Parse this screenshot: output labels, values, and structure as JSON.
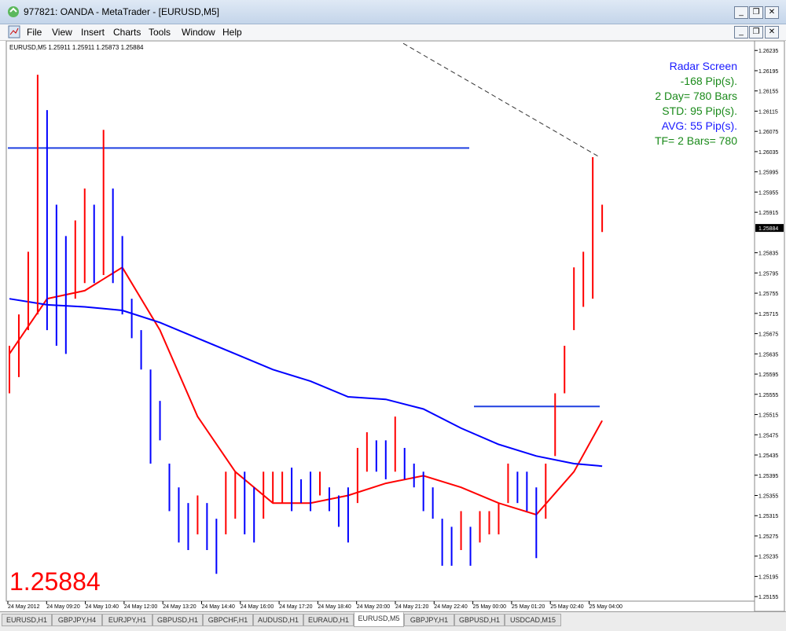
{
  "window_title": "977821: OANDA - MetaTrader - [EURUSD,M5]",
  "menu": [
    "File",
    "View",
    "Insert",
    "Charts",
    "Tools",
    "Window",
    "Help"
  ],
  "chart_info": "EURUSD,M5  1.25911 1.25911 1.25873 1.25884",
  "radar": [
    "Radar Screen",
    "-168 Pip(s).",
    "2 Day= 780 Bars",
    "STD: 95 Pip(s).",
    "AVG: 55 Pip(s).",
    "TF= 2 Bars= 780"
  ],
  "tabs": [
    "EURUSD,H1",
    "GBPJPY,H4",
    "EURJPY,H1",
    "GBPUSD,H1",
    "GBPCHF,H1",
    "AUDUSD,H1",
    "EURAUD,H1",
    "EURUSD,M5",
    "GBPJPY,H1",
    "GBPUSD,H1",
    "USDCAD,M15"
  ],
  "active_tab": 7,
  "chart_data": {
    "type": "ohlc",
    "ylim": [
      1.25146,
      1.26254
    ],
    "yticks": [
      1.26235,
      1.26195,
      1.26155,
      1.26115,
      1.26075,
      1.26035,
      1.25995,
      1.25955,
      1.25915,
      1.25835,
      1.25795,
      1.25755,
      1.25715,
      1.25675,
      1.25635,
      1.25595,
      1.25555,
      1.25515,
      1.25475,
      1.25435,
      1.25395,
      1.25355,
      1.25315,
      1.25275,
      1.25235,
      1.25195,
      1.25155
    ],
    "current_price": 1.25884,
    "categories": [
      "24 May 2012",
      "24 May 09:20",
      "24 May 10:40",
      "24 May 12:00",
      "24 May 13:20",
      "24 May 14:40",
      "24 May 16:00",
      "24 May 17:20",
      "24 May 18:40",
      "24 May 20:00",
      "24 May 21:20",
      "24 May 22:40",
      "25 May 00:00",
      "25 May 01:20",
      "25 May 02:40",
      "25 May 04:00"
    ],
    "highs": [
      1.25651,
      1.25713,
      1.25837,
      1.26187,
      1.26117,
      1.2593,
      1.25868,
      1.25899,
      1.25962,
      1.2593,
      1.26078,
      1.25962,
      1.25868,
      1.25744,
      1.25682,
      1.25604,
      1.25542,
      1.25418,
      1.25371,
      1.2534,
      1.25355,
      1.2534,
      1.25309,
      1.25402,
      1.25402,
      1.25402,
      1.25371,
      1.25402,
      1.25402,
      1.25402,
      1.2541,
      1.25387,
      1.25402,
      1.25402,
      1.25371,
      1.25355,
      1.25371,
      1.25449,
      1.2548,
      1.25464,
      1.25464,
      1.25511,
      1.25449,
      1.25418,
      1.25402,
      1.25371,
      1.25309,
      1.25293,
      1.25324,
      1.25293,
      1.25324,
      1.25324,
      1.2534,
      1.25418,
      1.25402,
      1.25402,
      1.25371,
      1.25418,
      1.25557,
      1.25651,
      1.25806,
      1.25837,
      1.26024,
      1.2593
    ],
    "lows": [
      1.25557,
      1.25589,
      1.25682,
      1.25713,
      1.25682,
      1.25651,
      1.25635,
      1.25744,
      1.25775,
      1.25775,
      1.25791,
      1.25775,
      1.25713,
      1.25666,
      1.25604,
      1.25418,
      1.25464,
      1.25324,
      1.25262,
      1.25247,
      1.25278,
      1.25247,
      1.252,
      1.25278,
      1.25309,
      1.25278,
      1.25262,
      1.25309,
      1.2534,
      1.2534,
      1.25324,
      1.2534,
      1.25324,
      1.25355,
      1.25324,
      1.25293,
      1.25262,
      1.2534,
      1.25402,
      1.25402,
      1.25387,
      1.25402,
      1.25387,
      1.25371,
      1.25324,
      1.25309,
      1.25216,
      1.25216,
      1.25247,
      1.25216,
      1.25262,
      1.25278,
      1.25278,
      1.2534,
      1.2534,
      1.25324,
      1.25231,
      1.25309,
      1.25433,
      1.25557,
      1.25682,
      1.25728,
      1.25744,
      1.25876
    ],
    "up_color": "#ff0000",
    "down_color": "#0000ff",
    "ma_x": [
      0,
      4,
      8,
      12,
      16,
      20,
      24,
      28,
      32,
      36,
      40,
      44,
      48,
      52,
      56,
      60,
      63
    ],
    "moving_averages": [
      {
        "color": "#ff0000",
        "values": [
          1.25635,
          1.25744,
          1.2576,
          1.25806,
          1.25682,
          1.25511,
          1.25402,
          1.2534,
          1.2534,
          1.25355,
          1.25379,
          1.25394,
          1.25371,
          1.2534,
          1.25317,
          1.25402,
          1.25503
        ]
      },
      {
        "color": "#0000ff",
        "values": [
          1.25744,
          1.25732,
          1.25728,
          1.25721,
          1.25697,
          1.25666,
          1.25635,
          1.25604,
          1.25581,
          1.2555,
          1.25545,
          1.25526,
          1.25488,
          1.25456,
          1.25433,
          1.25418,
          1.25413
        ]
      }
    ],
    "levels": [
      1.26042,
      1.25531
    ],
    "level_color": "#2040e0",
    "trendline": [
      1.26249,
      1.26024
    ]
  }
}
